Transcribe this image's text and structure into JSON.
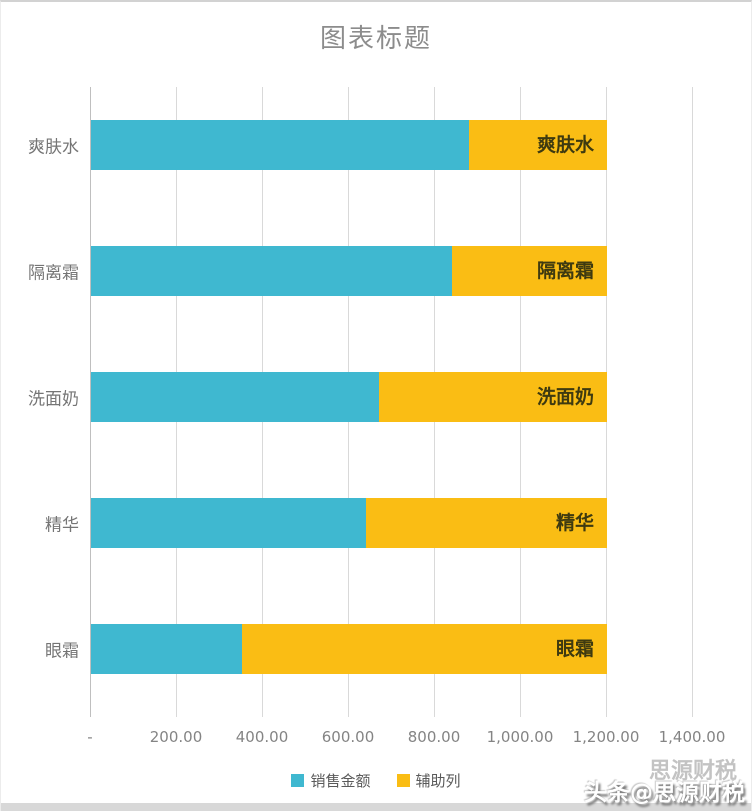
{
  "page": {
    "watermark": "头条@思源财税",
    "watermark_ghost": "思源财税"
  },
  "chart_data": {
    "type": "bar",
    "orientation": "horizontal",
    "stacked": true,
    "title": "图表标题",
    "categories": [
      "爽肤水",
      "隔离霜",
      "洗面奶",
      "精华",
      "眼霜"
    ],
    "series": [
      {
        "name": "销售金额",
        "color": "#3fb8d0",
        "values": [
          880,
          840,
          670,
          640,
          350
        ]
      },
      {
        "name": "辅助列",
        "color": "#fabd14",
        "values": [
          320,
          360,
          530,
          560,
          850
        ]
      }
    ],
    "bar_labels": [
      "爽肤水",
      "隔离霜",
      "洗面奶",
      "精华",
      "眼霜"
    ],
    "stack_total": 1200,
    "xlim": [
      0,
      1400
    ],
    "x_ticks": {
      "values": [
        0,
        200,
        400,
        600,
        800,
        1000,
        1200,
        1400
      ],
      "labels": [
        "-",
        "200.00",
        "400.00",
        "600.00",
        "800.00",
        "1,000.00",
        "1,200.00",
        "1,400.00"
      ]
    },
    "grid": "vertical",
    "legend_position": "bottom",
    "colors": {
      "gridline": "#d9d9d9",
      "axis_line": "#bfbfbf",
      "axis_text": "#848484",
      "category_text": "#757575",
      "title_text": "#8c8c8c",
      "bar_label_text": "#3e3a10"
    }
  }
}
